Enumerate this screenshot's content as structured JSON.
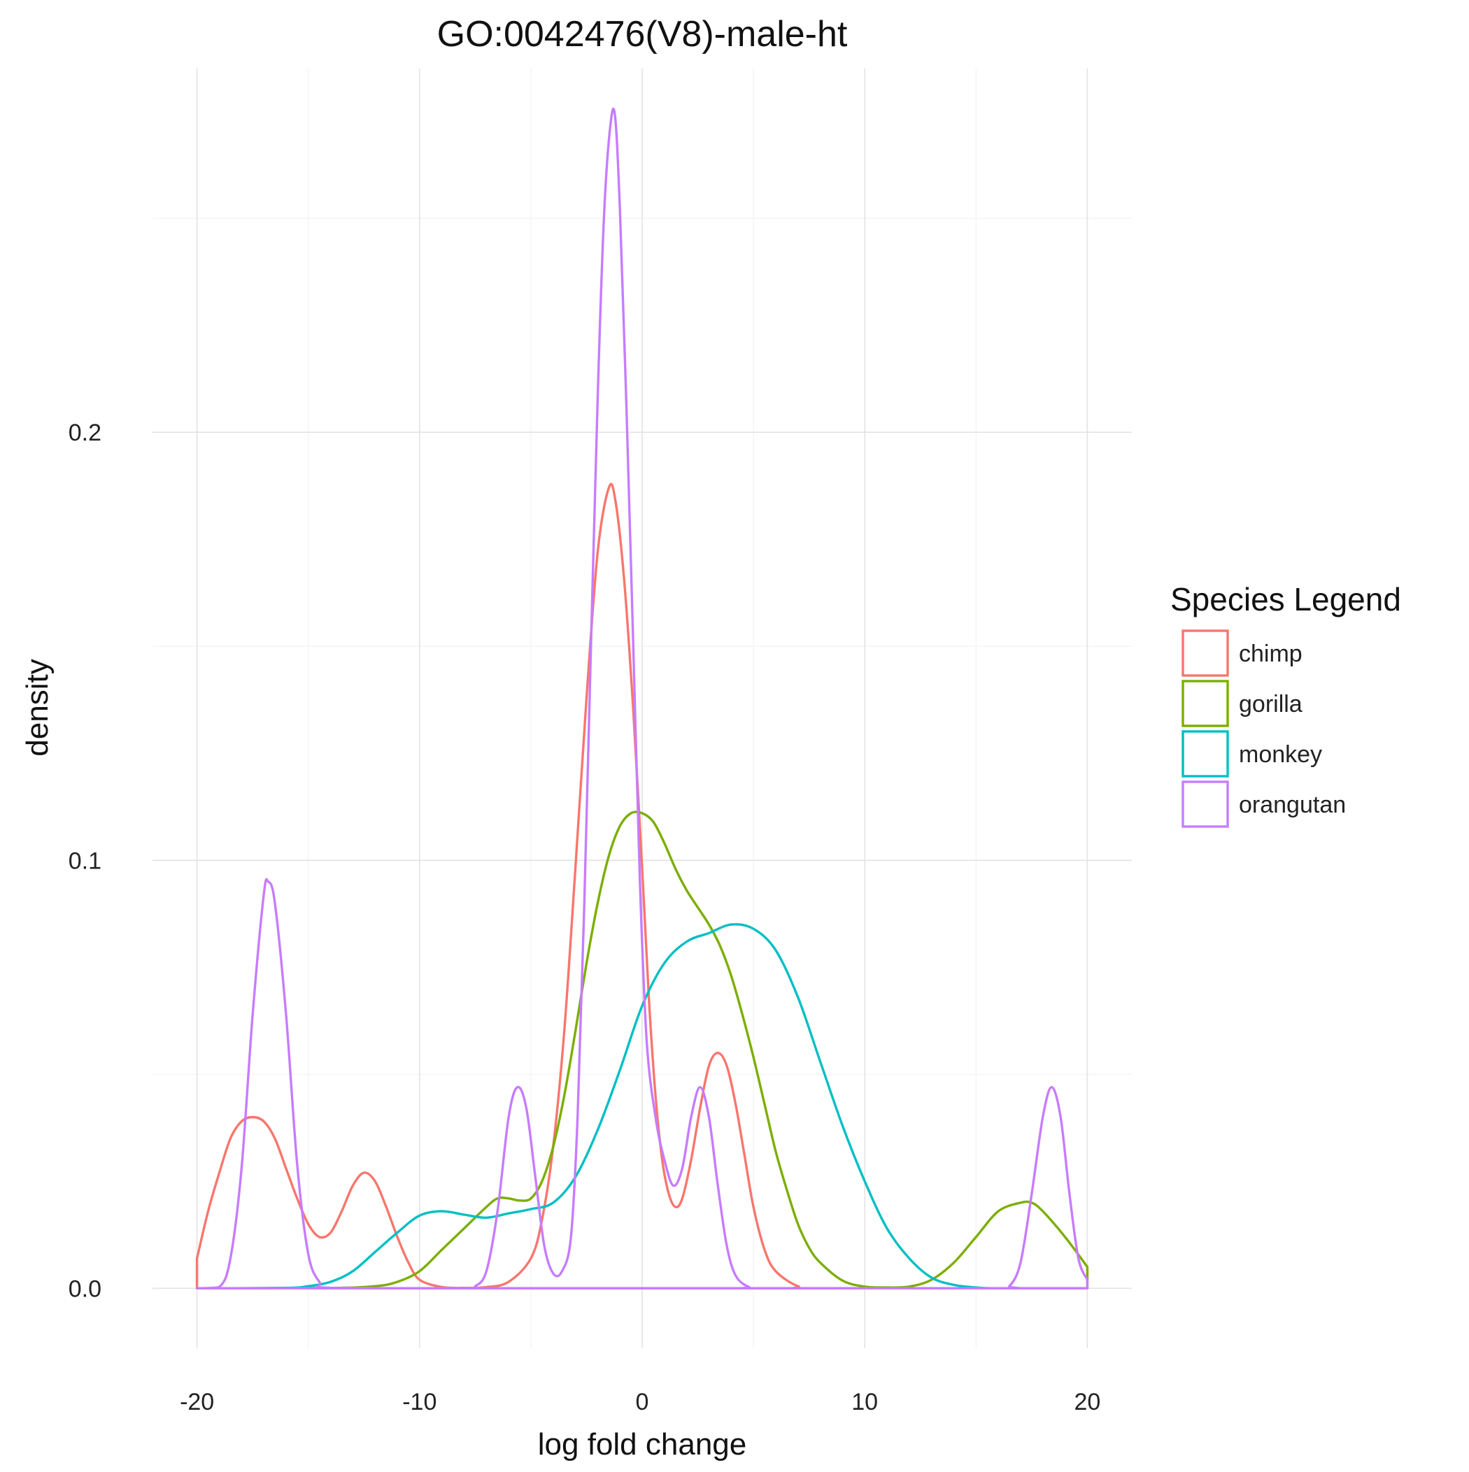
{
  "chart_data": {
    "type": "line",
    "title": "GO:0042476(V8)-male-ht",
    "xlabel": "log fold change",
    "ylabel": "density",
    "xlim": [
      -22,
      22
    ],
    "ylim": [
      -0.014,
      0.285
    ],
    "x_ticks": [
      -20,
      -10,
      0,
      10,
      20
    ],
    "x_tick_labels": [
      "-20",
      "-10",
      "0",
      "10",
      "20"
    ],
    "y_ticks": [
      0.0,
      0.1,
      0.2
    ],
    "y_tick_labels": [
      "0.0",
      "0.1",
      "0.2"
    ],
    "grid": true,
    "legend": {
      "title": "Species Legend",
      "position": "right"
    },
    "series": [
      {
        "name": "chimp",
        "color": "#F8766D",
        "points": [
          [
            -20,
            0.007
          ],
          [
            -19.5,
            0.018
          ],
          [
            -19,
            0.027
          ],
          [
            -18.5,
            0.035
          ],
          [
            -18,
            0.039
          ],
          [
            -17.5,
            0.04
          ],
          [
            -17,
            0.039
          ],
          [
            -16.5,
            0.035
          ],
          [
            -16,
            0.028
          ],
          [
            -15.5,
            0.021
          ],
          [
            -15,
            0.015
          ],
          [
            -14.5,
            0.012
          ],
          [
            -14,
            0.013
          ],
          [
            -13.5,
            0.018
          ],
          [
            -13,
            0.024
          ],
          [
            -12.5,
            0.027
          ],
          [
            -12,
            0.025
          ],
          [
            -11.5,
            0.019
          ],
          [
            -11,
            0.012
          ],
          [
            -10.5,
            0.006
          ],
          [
            -10,
            0.002
          ],
          [
            -9,
            0.0003
          ],
          [
            -8,
            0.0001
          ],
          [
            -7,
            0.0003
          ],
          [
            -6,
            0.0015
          ],
          [
            -5,
            0.007
          ],
          [
            -4.5,
            0.016
          ],
          [
            -4,
            0.033
          ],
          [
            -3.5,
            0.06
          ],
          [
            -3,
            0.098
          ],
          [
            -2.5,
            0.138
          ],
          [
            -2,
            0.172
          ],
          [
            -1.5,
            0.187
          ],
          [
            -1.2,
            0.184
          ],
          [
            -0.8,
            0.165
          ],
          [
            -0.4,
            0.135
          ],
          [
            0,
            0.098
          ],
          [
            0.3,
            0.068
          ],
          [
            0.6,
            0.045
          ],
          [
            0.9,
            0.03
          ],
          [
            1.2,
            0.022
          ],
          [
            1.5,
            0.019
          ],
          [
            1.8,
            0.021
          ],
          [
            2.2,
            0.03
          ],
          [
            2.6,
            0.042
          ],
          [
            3,
            0.052
          ],
          [
            3.4,
            0.055
          ],
          [
            3.8,
            0.052
          ],
          [
            4.2,
            0.043
          ],
          [
            4.6,
            0.031
          ],
          [
            5,
            0.019
          ],
          [
            5.5,
            0.009
          ],
          [
            6,
            0.004
          ],
          [
            7,
            0.0005
          ],
          [
            8,
            0
          ],
          [
            20,
            0
          ]
        ]
      },
      {
        "name": "gorilla",
        "color": "#7CAE00",
        "points": [
          [
            -20,
            0
          ],
          [
            -14,
            0.0001
          ],
          [
            -12,
            0.0005
          ],
          [
            -11,
            0.0015
          ],
          [
            -10,
            0.004
          ],
          [
            -9,
            0.009
          ],
          [
            -8,
            0.014
          ],
          [
            -7,
            0.019
          ],
          [
            -6.5,
            0.021
          ],
          [
            -6,
            0.021
          ],
          [
            -5.5,
            0.0205
          ],
          [
            -5,
            0.021
          ],
          [
            -4.5,
            0.025
          ],
          [
            -4,
            0.033
          ],
          [
            -3.5,
            0.045
          ],
          [
            -3,
            0.06
          ],
          [
            -2.5,
            0.076
          ],
          [
            -2,
            0.09
          ],
          [
            -1.5,
            0.101
          ],
          [
            -1,
            0.108
          ],
          [
            -0.5,
            0.111
          ],
          [
            0,
            0.111
          ],
          [
            0.5,
            0.109
          ],
          [
            1,
            0.104
          ],
          [
            1.5,
            0.098
          ],
          [
            2,
            0.093
          ],
          [
            2.5,
            0.089
          ],
          [
            3,
            0.085
          ],
          [
            3.5,
            0.08
          ],
          [
            4,
            0.073
          ],
          [
            4.5,
            0.064
          ],
          [
            5,
            0.054
          ],
          [
            5.5,
            0.043
          ],
          [
            6,
            0.032
          ],
          [
            6.5,
            0.023
          ],
          [
            7,
            0.015
          ],
          [
            7.5,
            0.0095
          ],
          [
            8,
            0.006
          ],
          [
            9,
            0.0018
          ],
          [
            10,
            0.0004
          ],
          [
            11,
            0.0002
          ],
          [
            12,
            0.0004
          ],
          [
            13,
            0.002
          ],
          [
            14,
            0.006
          ],
          [
            15,
            0.012
          ],
          [
            16,
            0.018
          ],
          [
            17,
            0.02
          ],
          [
            17.5,
            0.02
          ],
          [
            18,
            0.018
          ],
          [
            19,
            0.012
          ],
          [
            20,
            0.005
          ]
        ]
      },
      {
        "name": "monkey",
        "color": "#00BFC4",
        "points": [
          [
            -20,
            0
          ],
          [
            -16,
            0.0001
          ],
          [
            -15,
            0.0005
          ],
          [
            -14,
            0.0015
          ],
          [
            -13,
            0.004
          ],
          [
            -12,
            0.0085
          ],
          [
            -11,
            0.013
          ],
          [
            -10,
            0.017
          ],
          [
            -9,
            0.018
          ],
          [
            -8,
            0.0172
          ],
          [
            -7,
            0.0165
          ],
          [
            -6,
            0.0175
          ],
          [
            -5,
            0.0185
          ],
          [
            -4,
            0.02
          ],
          [
            -3,
            0.026
          ],
          [
            -2,
            0.037
          ],
          [
            -1,
            0.051
          ],
          [
            0,
            0.066
          ],
          [
            1,
            0.076
          ],
          [
            2,
            0.081
          ],
          [
            3,
            0.083
          ],
          [
            4,
            0.085
          ],
          [
            5,
            0.084
          ],
          [
            6,
            0.079
          ],
          [
            7,
            0.068
          ],
          [
            8,
            0.053
          ],
          [
            9,
            0.038
          ],
          [
            10,
            0.025
          ],
          [
            11,
            0.014
          ],
          [
            12,
            0.007
          ],
          [
            13,
            0.0025
          ],
          [
            14,
            0.0008
          ],
          [
            15,
            0.0002
          ],
          [
            16,
            0
          ],
          [
            20,
            0
          ]
        ]
      },
      {
        "name": "orangutan",
        "color": "#C77CFF",
        "points": [
          [
            -20,
            0
          ],
          [
            -19,
            0.0003
          ],
          [
            -18.5,
            0.007
          ],
          [
            -18,
            0.028
          ],
          [
            -17.5,
            0.064
          ],
          [
            -17,
            0.092
          ],
          [
            -16.8,
            0.095
          ],
          [
            -16.5,
            0.09
          ],
          [
            -16,
            0.064
          ],
          [
            -15.5,
            0.029
          ],
          [
            -15,
            0.008
          ],
          [
            -14.5,
            0.0015
          ],
          [
            -14,
            0.0001
          ],
          [
            -8,
            0
          ],
          [
            -7.5,
            0.0005
          ],
          [
            -7,
            0.004
          ],
          [
            -6.5,
            0.018
          ],
          [
            -6,
            0.04
          ],
          [
            -5.6,
            0.047
          ],
          [
            -5.2,
            0.042
          ],
          [
            -4.8,
            0.026
          ],
          [
            -4.4,
            0.01
          ],
          [
            -4,
            0.0035
          ],
          [
            -3.6,
            0.004
          ],
          [
            -3.2,
            0.012
          ],
          [
            -2.9,
            0.04
          ],
          [
            -2.6,
            0.09
          ],
          [
            -2.3,
            0.15
          ],
          [
            -2,
            0.208
          ],
          [
            -1.7,
            0.252
          ],
          [
            -1.4,
            0.273
          ],
          [
            -1.2,
            0.273
          ],
          [
            -1,
            0.252
          ],
          [
            -0.7,
            0.205
          ],
          [
            -0.4,
            0.15
          ],
          [
            -0.1,
            0.095
          ],
          [
            0.2,
            0.058
          ],
          [
            0.6,
            0.04
          ],
          [
            1,
            0.03
          ],
          [
            1.4,
            0.024
          ],
          [
            1.8,
            0.028
          ],
          [
            2.2,
            0.04
          ],
          [
            2.6,
            0.047
          ],
          [
            3,
            0.04
          ],
          [
            3.4,
            0.024
          ],
          [
            3.8,
            0.01
          ],
          [
            4.2,
            0.003
          ],
          [
            4.8,
            0.0003
          ],
          [
            5.5,
            0
          ],
          [
            16,
            0
          ],
          [
            16.5,
            0.0005
          ],
          [
            17,
            0.006
          ],
          [
            17.5,
            0.022
          ],
          [
            18,
            0.04
          ],
          [
            18.4,
            0.047
          ],
          [
            18.8,
            0.04
          ],
          [
            19.2,
            0.022
          ],
          [
            19.6,
            0.007
          ],
          [
            20,
            0.002
          ]
        ]
      }
    ]
  }
}
